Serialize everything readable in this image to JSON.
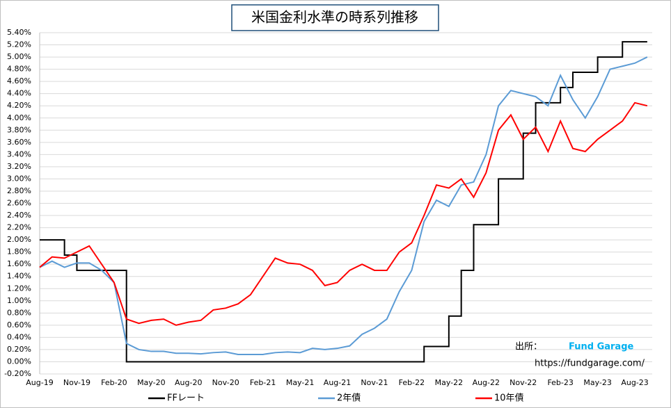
{
  "chart_data": {
    "type": "line",
    "title": "米国金利水準の時系列推移",
    "categories": [
      "Aug-19",
      null,
      null,
      "Nov-19",
      null,
      null,
      "Feb-20",
      null,
      null,
      "May-20",
      null,
      null,
      "Aug-20",
      null,
      null,
      "Nov-20",
      null,
      null,
      "Feb-21",
      null,
      null,
      "May-21",
      null,
      null,
      "Aug-21",
      null,
      null,
      "Nov-21",
      null,
      null,
      "Feb-22",
      null,
      null,
      "May-22",
      null,
      null,
      "Aug-22",
      null,
      null,
      "Nov-22",
      null,
      null,
      "Feb-23",
      null,
      null,
      "May-23",
      null,
      null,
      "Aug-23",
      null
    ],
    "series": [
      {
        "name": "FFレート",
        "color": "#000000",
        "step": true,
        "values": [
          2.0,
          2.0,
          1.75,
          1.5,
          1.5,
          1.5,
          1.5,
          0,
          0,
          0,
          0,
          0,
          0,
          0,
          0,
          0,
          0,
          0,
          0,
          0,
          0,
          0,
          0,
          0,
          0,
          0,
          0,
          0,
          0,
          0,
          0,
          0.25,
          0.25,
          0.75,
          1.5,
          2.25,
          2.25,
          3.0,
          3.0,
          3.75,
          4.25,
          4.25,
          4.5,
          4.75,
          4.75,
          5.0,
          5.0,
          5.25,
          5.25,
          5.25
        ]
      },
      {
        "name": "2年債",
        "color": "#5b9bd5",
        "step": false,
        "values": [
          1.55,
          1.65,
          1.55,
          1.62,
          1.62,
          1.5,
          1.3,
          0.3,
          0.2,
          0.17,
          0.17,
          0.14,
          0.14,
          0.13,
          0.15,
          0.16,
          0.12,
          0.12,
          0.12,
          0.15,
          0.16,
          0.15,
          0.22,
          0.2,
          0.22,
          0.26,
          0.45,
          0.55,
          0.7,
          1.15,
          1.5,
          2.3,
          2.65,
          2.55,
          2.9,
          2.95,
          3.4,
          4.2,
          4.45,
          4.4,
          4.35,
          4.2,
          4.7,
          4.3,
          4.0,
          4.35,
          4.8,
          4.85,
          4.9,
          5.0
        ]
      },
      {
        "name": "10年債",
        "color": "#ff0000",
        "step": false,
        "values": [
          1.55,
          1.72,
          1.7,
          1.8,
          1.9,
          1.6,
          1.3,
          0.7,
          0.63,
          0.68,
          0.7,
          0.6,
          0.65,
          0.68,
          0.85,
          0.88,
          0.95,
          1.1,
          1.4,
          1.7,
          1.62,
          1.6,
          1.5,
          1.25,
          1.3,
          1.5,
          1.6,
          1.5,
          1.5,
          1.8,
          1.95,
          2.4,
          2.9,
          2.85,
          3.0,
          2.7,
          3.1,
          3.8,
          4.05,
          3.65,
          3.85,
          3.45,
          3.95,
          3.5,
          3.45,
          3.65,
          3.8,
          3.95,
          4.25,
          4.2
        ]
      }
    ],
    "ylim": [
      -0.2,
      5.4
    ],
    "yticks": [
      {
        "value": -0.2,
        "label": "-0.20%"
      },
      {
        "value": 0,
        "label": "0.00%"
      },
      {
        "value": 0.2,
        "label": "0.20%"
      },
      {
        "value": 0.4,
        "label": "0.40%"
      },
      {
        "value": 0.6,
        "label": "0.60%"
      },
      {
        "value": 0.8,
        "label": "0.80%"
      },
      {
        "value": 1.0,
        "label": "1.00%"
      },
      {
        "value": 1.2,
        "label": "1.20%"
      },
      {
        "value": 1.4,
        "label": "1.40%"
      },
      {
        "value": 1.6,
        "label": "1.60%"
      },
      {
        "value": 1.8,
        "label": "1.80%"
      },
      {
        "value": 2.0,
        "label": "2.00%"
      },
      {
        "value": 2.2,
        "label": "2.20%"
      },
      {
        "value": 2.4,
        "label": "2.40%"
      },
      {
        "value": 2.6,
        "label": "2.60%"
      },
      {
        "value": 2.8,
        "label": "2.80%"
      },
      {
        "value": 3.0,
        "label": "3.00%"
      },
      {
        "value": 3.2,
        "label": "3.20%"
      },
      {
        "value": 3.4,
        "label": "3.40%"
      },
      {
        "value": 3.6,
        "label": "3.60%"
      },
      {
        "value": 3.8,
        "label": "3.80%"
      },
      {
        "value": 4.0,
        "label": "4.00%"
      },
      {
        "value": 4.2,
        "label": "4.20%"
      },
      {
        "value": 4.4,
        "label": "4.40%"
      },
      {
        "value": 4.6,
        "label": "4.60%"
      },
      {
        "value": 4.8,
        "label": "4.80%"
      },
      {
        "value": 5.0,
        "label": "5.00%"
      },
      {
        "value": 5.2,
        "label": "5.20%"
      },
      {
        "value": 5.4,
        "label": "5.40%"
      }
    ],
    "grid": true,
    "legend": "bottom",
    "annotations": {
      "source_label": "出所：",
      "source_name": "Fund Garage",
      "source_url": "https://fundgarage.com/"
    }
  }
}
